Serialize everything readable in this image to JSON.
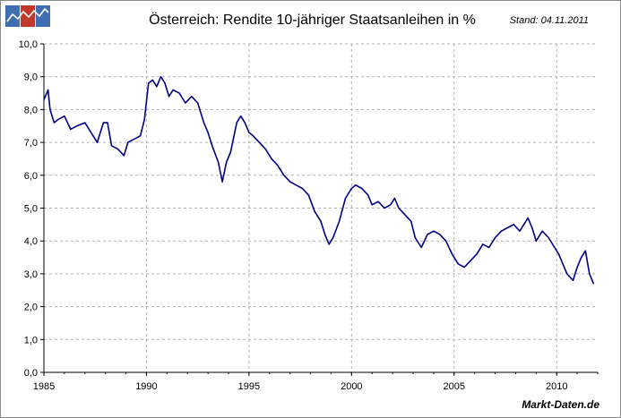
{
  "header": {
    "title": "Österreich: Rendite 10-jähriger Staatsanleihen in %",
    "stand": "Stand: 04.11.2011",
    "source": "Markt-Daten.de"
  },
  "logo": {
    "colors": [
      "#3f6fb0",
      "#c0392b",
      "#3f6fb0"
    ]
  },
  "colors": {
    "line": "#000080",
    "grid": "#b0b0b0",
    "axis": "#000000"
  },
  "chart_data": {
    "type": "line",
    "title": "Österreich: Rendite 10-jähriger Staatsanleihen in %",
    "xlabel": "",
    "ylabel": "",
    "xlim": [
      1985,
      2012
    ],
    "ylim": [
      0,
      10
    ],
    "x_ticks": [
      "1985",
      "1990",
      "1995",
      "2000",
      "2005",
      "2010"
    ],
    "y_ticks": [
      "0,0",
      "1,0",
      "2,0",
      "3,0",
      "4,0",
      "5,0",
      "6,0",
      "7,0",
      "8,0",
      "9,0",
      "10,0"
    ],
    "grid": true,
    "series": [
      {
        "x": [
          1985.0,
          1985.2,
          1985.3,
          1985.5,
          1985.7,
          1986.0,
          1986.3,
          1986.6,
          1987.0,
          1987.3,
          1987.6,
          1987.9,
          1988.1,
          1988.3,
          1988.6,
          1988.9,
          1989.1,
          1989.4,
          1989.7,
          1989.9,
          1990.1,
          1990.3,
          1990.5,
          1990.7,
          1990.9,
          1991.1,
          1991.3,
          1991.6,
          1991.9,
          1992.2,
          1992.5,
          1992.8,
          1993.0,
          1993.2,
          1993.5,
          1993.7,
          1993.9,
          1994.1,
          1994.4,
          1994.6,
          1994.8,
          1995.0,
          1995.2,
          1995.5,
          1995.8,
          1996.1,
          1996.4,
          1996.7,
          1997.0,
          1997.3,
          1997.6,
          1997.9,
          1998.2,
          1998.5,
          1998.7,
          1998.9,
          1999.1,
          1999.4,
          1999.7,
          2000.0,
          2000.2,
          2000.5,
          2000.8,
          2001.0,
          2001.3,
          2001.6,
          2001.9,
          2002.1,
          2002.3,
          2002.6,
          2002.9,
          2003.1,
          2003.4,
          2003.7,
          2004.0,
          2004.3,
          2004.6,
          2004.9,
          2005.2,
          2005.5,
          2005.8,
          2006.1,
          2006.4,
          2006.7,
          2007.0,
          2007.3,
          2007.6,
          2007.9,
          2008.2,
          2008.4,
          2008.6,
          2008.8,
          2009.0,
          2009.3,
          2009.6,
          2009.9,
          2010.1,
          2010.3,
          2010.5,
          2010.8,
          2011.0,
          2011.2,
          2011.4,
          2011.6,
          2011.8
        ],
        "y": [
          8.3,
          8.6,
          8.0,
          7.6,
          7.7,
          7.8,
          7.4,
          7.5,
          7.6,
          7.3,
          7.0,
          7.6,
          7.6,
          6.9,
          6.8,
          6.6,
          7.0,
          7.1,
          7.2,
          7.7,
          8.8,
          8.9,
          8.7,
          9.0,
          8.8,
          8.4,
          8.6,
          8.5,
          8.2,
          8.4,
          8.2,
          7.6,
          7.3,
          6.9,
          6.4,
          5.8,
          6.4,
          6.7,
          7.6,
          7.8,
          7.6,
          7.3,
          7.2,
          7.0,
          6.8,
          6.5,
          6.3,
          6.0,
          5.8,
          5.7,
          5.6,
          5.4,
          4.9,
          4.6,
          4.2,
          3.9,
          4.1,
          4.6,
          5.3,
          5.6,
          5.7,
          5.6,
          5.4,
          5.1,
          5.2,
          5.0,
          5.1,
          5.3,
          5.0,
          4.8,
          4.6,
          4.1,
          3.8,
          4.2,
          4.3,
          4.2,
          4.0,
          3.6,
          3.3,
          3.2,
          3.4,
          3.6,
          3.9,
          3.8,
          4.1,
          4.3,
          4.4,
          4.5,
          4.3,
          4.5,
          4.7,
          4.4,
          4.0,
          4.3,
          4.1,
          3.8,
          3.6,
          3.3,
          3.0,
          2.8,
          3.2,
          3.5,
          3.7,
          3.0,
          2.7
        ]
      }
    ]
  }
}
